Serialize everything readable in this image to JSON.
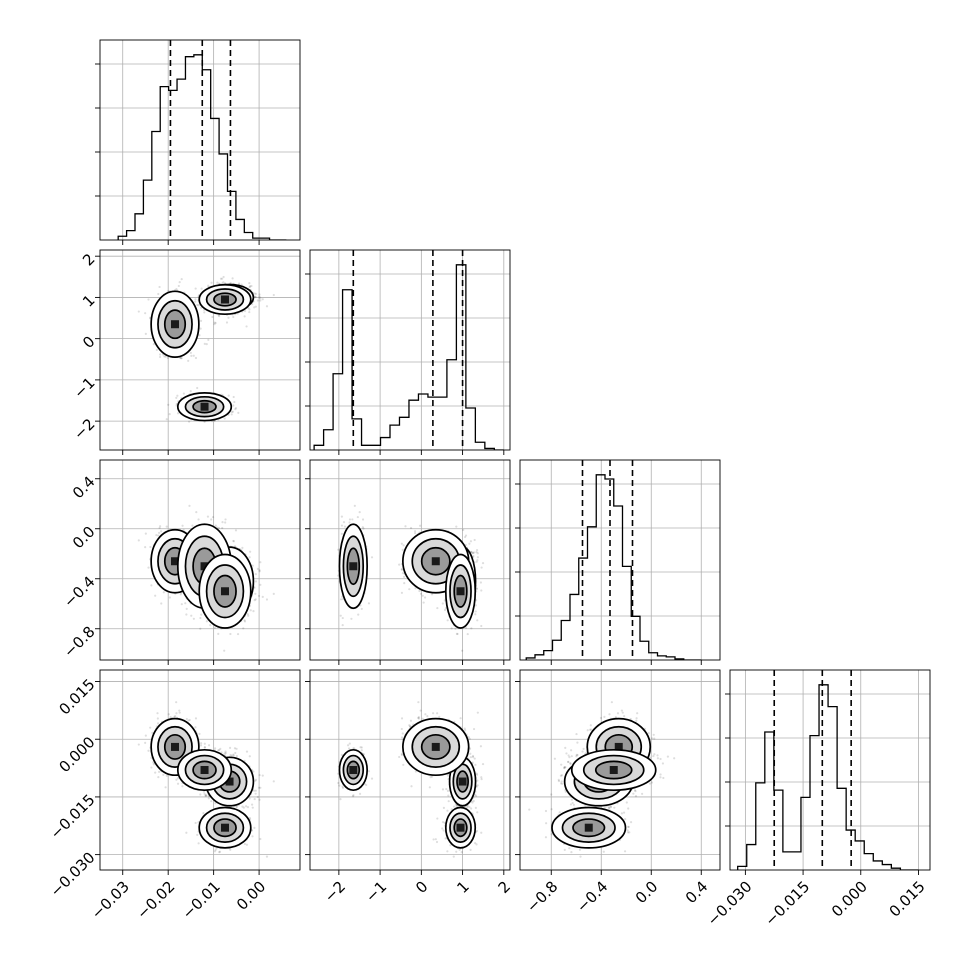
{
  "chart_data": {
    "type": "corner",
    "grid": true,
    "parameters": [
      {
        "lim": [
          -0.035,
          0.009
        ],
        "ticks": [
          -0.03,
          -0.02,
          -0.01,
          0.0
        ],
        "tick_labels": [
          "−0.03",
          "−0.02",
          "−0.01",
          "0.00"
        ],
        "quantiles": [
          -0.0195,
          -0.0125,
          -0.0063
        ],
        "hist_edges_range": [
          -0.031,
          0.006
        ],
        "hist_counts": [
          2,
          5,
          14,
          32,
          58,
          82,
          80,
          86,
          98,
          99,
          91,
          65,
          46,
          26,
          11,
          4,
          1,
          1,
          0,
          0
        ]
      },
      {
        "lim": [
          -2.7,
          2.15
        ],
        "ticks": [
          -2,
          -1,
          0,
          1,
          2
        ],
        "tick_labels": [
          "−2",
          "−1",
          "0",
          "1",
          "2"
        ],
        "quantiles": [
          -1.65,
          0.28,
          1.0
        ],
        "hist_edges_range": [
          -2.6,
          2.0
        ],
        "hist_counts": [
          3,
          13,
          49,
          103,
          20,
          3,
          3,
          8,
          16,
          21,
          32,
          36,
          34,
          34,
          58,
          119,
          27,
          5,
          1,
          0
        ]
      },
      {
        "lim": [
          -1.05,
          0.55
        ],
        "ticks": [
          -0.8,
          -0.4,
          0.0,
          0.4
        ],
        "tick_labels": [
          "−0.8",
          "−0.4",
          "0.0",
          "0.4"
        ],
        "quantiles": [
          -0.55,
          -0.33,
          -0.15
        ],
        "hist_edges_range": [
          -1.0,
          0.4
        ],
        "hist_counts": [
          2,
          5,
          9,
          19,
          38,
          63,
          98,
          128,
          178,
          174,
          148,
          90,
          42,
          18,
          7,
          4,
          3,
          1,
          0,
          0
        ]
      },
      {
        "lim": [
          -0.034,
          0.018
        ],
        "ticks": [
          -0.03,
          -0.015,
          0.0,
          0.015
        ],
        "tick_labels": [
          "−0.030",
          "−0.015",
          "0.000",
          "0.015"
        ],
        "quantiles": [
          -0.0225,
          -0.01,
          -0.0025
        ],
        "hist_edges_range": [
          -0.032,
          0.015
        ],
        "hist_counts": [
          2,
          14,
          48,
          76,
          44,
          10,
          10,
          40,
          74,
          102,
          90,
          45,
          22,
          16,
          9,
          5,
          3,
          1,
          0,
          0
        ]
      }
    ],
    "modes": [
      {
        "center": [
          -0.0065,
          1.0,
          -0.42,
          -0.011
        ],
        "sd": [
          0.0025,
          0.15,
          0.13,
          0.003
        ],
        "weight": 0.36
      },
      {
        "center": [
          -0.0185,
          0.35,
          -0.26,
          -0.002
        ],
        "sd": [
          0.0025,
          0.38,
          0.12,
          0.0035
        ],
        "weight": 0.22
      },
      {
        "center": [
          -0.012,
          -1.65,
          -0.3,
          -0.008
        ],
        "sd": [
          0.0028,
          0.16,
          0.16,
          0.0025
        ],
        "weight": 0.22
      },
      {
        "center": [
          -0.0075,
          0.95,
          -0.5,
          -0.023
        ],
        "sd": [
          0.0027,
          0.17,
          0.14,
          0.0025
        ],
        "weight": 0.2
      }
    ],
    "contour_levels": [
      0.11,
      0.3,
      0.55
    ]
  }
}
